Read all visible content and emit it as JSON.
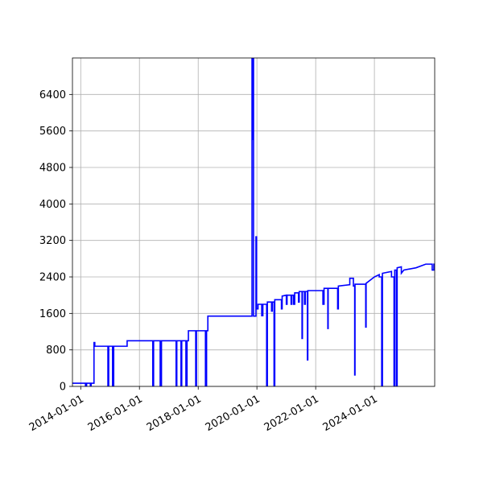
{
  "chart_data": {
    "type": "line",
    "title": "",
    "xlabel": "",
    "ylabel": "",
    "grid": true,
    "xlim": [
      "2013-09-20",
      "2026-01-20"
    ],
    "ylim": [
      0,
      7200
    ],
    "x_ticks": [
      "2014-01-01",
      "2016-01-01",
      "2018-01-01",
      "2020-01-01",
      "2022-01-01",
      "2024-01-01"
    ],
    "y_ticks": [
      0,
      800,
      1600,
      2400,
      3200,
      4000,
      4800,
      5600,
      6400
    ],
    "line_color": "#0000ff",
    "series": [
      {
        "points": [
          [
            "2013-09-20",
            70
          ],
          [
            "2014-03-01",
            70
          ],
          [
            "2014-03-01",
            0
          ],
          [
            "2014-03-15",
            0
          ],
          [
            "2014-03-15",
            70
          ],
          [
            "2014-05-01",
            70
          ],
          [
            "2014-05-01",
            0
          ],
          [
            "2014-05-10",
            0
          ],
          [
            "2014-05-10",
            70
          ],
          [
            "2014-06-15",
            70
          ],
          [
            "2014-06-15",
            960
          ],
          [
            "2014-06-25",
            960
          ],
          [
            "2014-06-25",
            880
          ],
          [
            "2014-12-05",
            880
          ],
          [
            "2014-12-05",
            0
          ],
          [
            "2014-12-15",
            0
          ],
          [
            "2014-12-15",
            880
          ],
          [
            "2015-02-01",
            880
          ],
          [
            "2015-02-01",
            0
          ],
          [
            "2015-02-15",
            0
          ],
          [
            "2015-02-15",
            880
          ],
          [
            "2015-08-01",
            880
          ],
          [
            "2015-08-01",
            1000
          ],
          [
            "2016-06-15",
            1000
          ],
          [
            "2016-06-15",
            0
          ],
          [
            "2016-06-25",
            0
          ],
          [
            "2016-06-25",
            1000
          ],
          [
            "2016-09-15",
            1000
          ],
          [
            "2016-09-15",
            0
          ],
          [
            "2016-10-01",
            0
          ],
          [
            "2016-10-01",
            1000
          ],
          [
            "2017-04-01",
            1000
          ],
          [
            "2017-04-01",
            0
          ],
          [
            "2017-04-10",
            0
          ],
          [
            "2017-04-10",
            1000
          ],
          [
            "2017-06-01",
            1000
          ],
          [
            "2017-06-01",
            0
          ],
          [
            "2017-06-10",
            0
          ],
          [
            "2017-06-10",
            1000
          ],
          [
            "2017-08-01",
            1000
          ],
          [
            "2017-08-01",
            0
          ],
          [
            "2017-08-15",
            0
          ],
          [
            "2017-08-15",
            1000
          ],
          [
            "2017-09-01",
            1000
          ],
          [
            "2017-09-01",
            1220
          ],
          [
            "2017-12-01",
            1220
          ],
          [
            "2017-12-01",
            0
          ],
          [
            "2017-12-10",
            0
          ],
          [
            "2017-12-10",
            1220
          ],
          [
            "2018-04-01",
            1220
          ],
          [
            "2018-04-01",
            0
          ],
          [
            "2018-04-15",
            0
          ],
          [
            "2018-04-15",
            1220
          ],
          [
            "2018-05-01",
            1220
          ],
          [
            "2018-05-01",
            1540
          ],
          [
            "2019-11-01",
            1540
          ],
          [
            "2019-11-01",
            7200
          ],
          [
            "2019-11-05",
            5400
          ],
          [
            "2019-11-10",
            7200
          ],
          [
            "2019-11-20",
            7200
          ],
          [
            "2019-11-20",
            1540
          ],
          [
            "2019-12-20",
            1540
          ],
          [
            "2019-12-20",
            3280
          ],
          [
            "2019-12-28",
            3280
          ],
          [
            "2019-12-28",
            1700
          ],
          [
            "2020-01-15",
            1700
          ],
          [
            "2020-01-15",
            1800
          ],
          [
            "2020-03-01",
            1800
          ],
          [
            "2020-03-01",
            1550
          ],
          [
            "2020-03-15",
            1550
          ],
          [
            "2020-03-15",
            1800
          ],
          [
            "2020-05-01",
            1800
          ],
          [
            "2020-05-01",
            0
          ],
          [
            "2020-05-10",
            0
          ],
          [
            "2020-05-10",
            1850
          ],
          [
            "2020-07-01",
            1850
          ],
          [
            "2020-07-01",
            1650
          ],
          [
            "2020-07-10",
            1650
          ],
          [
            "2020-07-10",
            1850
          ],
          [
            "2020-08-01",
            1850
          ],
          [
            "2020-08-01",
            0
          ],
          [
            "2020-08-10",
            0
          ],
          [
            "2020-08-10",
            1900
          ],
          [
            "2020-11-01",
            1900
          ],
          [
            "2020-11-01",
            1700
          ],
          [
            "2020-11-10",
            1700
          ],
          [
            "2020-11-10",
            1980
          ],
          [
            "2021-01-01",
            2000
          ],
          [
            "2021-01-01",
            1800
          ],
          [
            "2021-01-10",
            1800
          ],
          [
            "2021-01-10",
            2000
          ],
          [
            "2021-03-01",
            2000
          ],
          [
            "2021-03-01",
            1800
          ],
          [
            "2021-03-10",
            1800
          ],
          [
            "2021-03-10",
            2000
          ],
          [
            "2021-04-01",
            2000
          ],
          [
            "2021-04-01",
            1800
          ],
          [
            "2021-04-15",
            1800
          ],
          [
            "2021-04-15",
            2050
          ],
          [
            "2021-06-01",
            2050
          ],
          [
            "2021-06-01",
            1850
          ],
          [
            "2021-06-10",
            1850
          ],
          [
            "2021-06-10",
            2080
          ],
          [
            "2021-07-15",
            2080
          ],
          [
            "2021-07-15",
            1050
          ],
          [
            "2021-07-20",
            1050
          ],
          [
            "2021-07-20",
            2080
          ],
          [
            "2021-08-15",
            2080
          ],
          [
            "2021-08-15",
            1800
          ],
          [
            "2021-08-25",
            1800
          ],
          [
            "2021-08-25",
            2080
          ],
          [
            "2021-09-20",
            2080
          ],
          [
            "2021-09-20",
            580
          ],
          [
            "2021-09-25",
            580
          ],
          [
            "2021-09-25",
            2100
          ],
          [
            "2022-01-01",
            2100
          ],
          [
            "2022-04-01",
            2100
          ],
          [
            "2022-04-01",
            1800
          ],
          [
            "2022-04-15",
            1800
          ],
          [
            "2022-04-15",
            2150
          ],
          [
            "2022-06-01",
            2150
          ],
          [
            "2022-06-01",
            1270
          ],
          [
            "2022-06-05",
            1270
          ],
          [
            "2022-06-05",
            2150
          ],
          [
            "2022-10-01",
            2150
          ],
          [
            "2022-10-01",
            1700
          ],
          [
            "2022-10-10",
            1700
          ],
          [
            "2022-10-10",
            2200
          ],
          [
            "2023-03-01",
            2230
          ],
          [
            "2023-03-01",
            2370
          ],
          [
            "2023-04-15",
            2370
          ],
          [
            "2023-04-15",
            2200
          ],
          [
            "2023-05-01",
            2200
          ],
          [
            "2023-05-01",
            250
          ],
          [
            "2023-05-05",
            250
          ],
          [
            "2023-05-05",
            2240
          ],
          [
            "2023-09-15",
            2240
          ],
          [
            "2023-09-15",
            1300
          ],
          [
            "2023-09-20",
            1300
          ],
          [
            "2023-09-20",
            2260
          ],
          [
            "2024-01-01",
            2400
          ],
          [
            "2024-03-01",
            2450
          ],
          [
            "2024-03-01",
            2400
          ],
          [
            "2024-04-01",
            2400
          ],
          [
            "2024-04-01",
            0
          ],
          [
            "2024-04-10",
            0
          ],
          [
            "2024-04-10",
            2480
          ],
          [
            "2024-08-01",
            2520
          ],
          [
            "2024-08-01",
            2400
          ],
          [
            "2024-09-01",
            2400
          ],
          [
            "2024-09-01",
            0
          ],
          [
            "2024-09-10",
            0
          ],
          [
            "2024-09-10",
            2550
          ],
          [
            "2024-10-01",
            2550
          ],
          [
            "2024-10-01",
            0
          ],
          [
            "2024-10-10",
            0
          ],
          [
            "2024-10-10",
            2600
          ],
          [
            "2024-12-01",
            2620
          ],
          [
            "2024-12-01",
            2480
          ],
          [
            "2025-01-01",
            2550
          ],
          [
            "2025-06-01",
            2600
          ],
          [
            "2025-10-01",
            2680
          ],
          [
            "2025-12-20",
            2680
          ],
          [
            "2025-12-20",
            2550
          ],
          [
            "2026-01-10",
            2550
          ],
          [
            "2026-01-10",
            2680
          ],
          [
            "2026-01-20",
            2680
          ]
        ]
      }
    ]
  }
}
